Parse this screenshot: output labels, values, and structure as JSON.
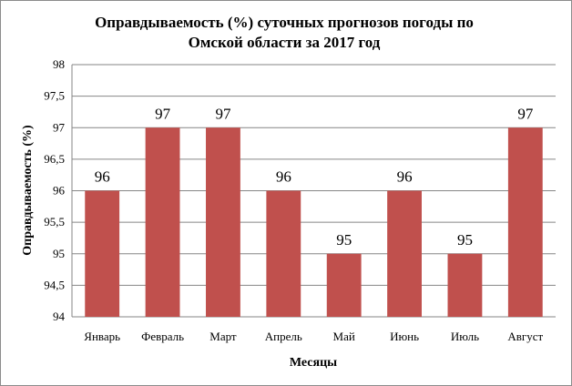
{
  "chart_data": {
    "type": "bar",
    "title_lines": [
      "Оправдываемость (%) суточных прогнозов погоды по",
      "Омской области за 2017 год"
    ],
    "xlabel": "Месяцы",
    "ylabel": "Оправдываемость (%)",
    "categories": [
      "Январь",
      "Февраль",
      "Март",
      "Апрель",
      "Май",
      "Июнь",
      "Июль",
      "Август"
    ],
    "values": [
      96,
      97,
      97,
      96,
      95,
      96,
      95,
      97
    ],
    "data_labels": [
      "96",
      "97",
      "97",
      "96",
      "95",
      "96",
      "95",
      "97"
    ],
    "ylim": [
      94,
      98
    ],
    "yticks": [
      94,
      94.5,
      95,
      95.5,
      96,
      96.5,
      97,
      97.5,
      98
    ],
    "ytick_labels": [
      "94",
      "94,5",
      "95",
      "95,5",
      "96",
      "96,5",
      "97",
      "97,5",
      "98"
    ],
    "grid": true,
    "legend": "none",
    "bar_color": "#C0504D",
    "grid_color": "#868686"
  }
}
